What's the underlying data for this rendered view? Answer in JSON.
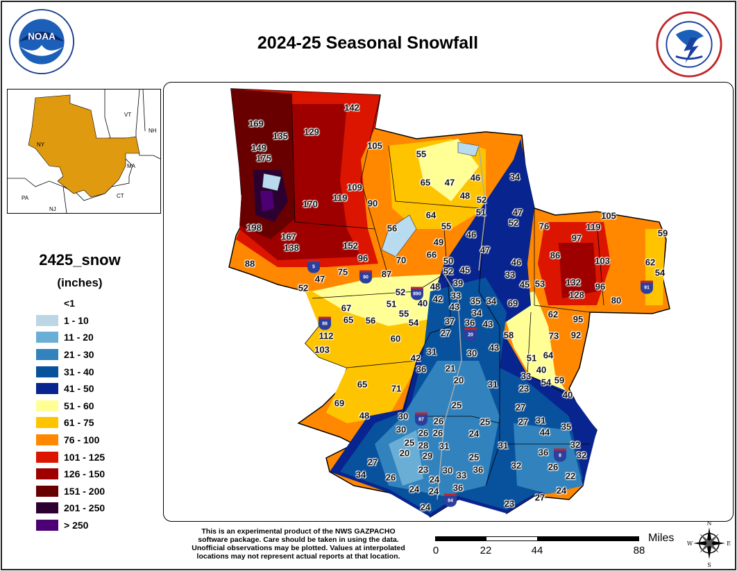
{
  "title": "2024-25 Seasonal Snowfall",
  "logos": {
    "left": "NOAA - National Oceanic and Atmospheric Administration, U.S. Department of Commerce",
    "right": "National Weather Service, U.S. Department of Commerce"
  },
  "inset": {
    "labels": [
      "NY",
      "VT",
      "NH",
      "MA",
      "CT",
      "PA",
      "NJ"
    ],
    "highlight_color": "#e09a10"
  },
  "legend": {
    "title": "2425_snow",
    "units": "(inches)",
    "items": [
      {
        "label": "<1",
        "color": "#ffffff"
      },
      {
        "label": "1 - 10",
        "color": "#bcd6e6"
      },
      {
        "label": "11 - 20",
        "color": "#6aaed6"
      },
      {
        "label": "21 - 30",
        "color": "#3182bd"
      },
      {
        "label": "31 - 40",
        "color": "#08519c"
      },
      {
        "label": "41 - 50",
        "color": "#08248f"
      },
      {
        "label": "51 - 60",
        "color": "#ffff96"
      },
      {
        "label": "61 - 75",
        "color": "#ffc400"
      },
      {
        "label": "76 - 100",
        "color": "#ff8800"
      },
      {
        "label": "101 - 125",
        "color": "#db1500"
      },
      {
        "label": "126 - 150",
        "color": "#9e0000"
      },
      {
        "label": "151 - 200",
        "color": "#690000"
      },
      {
        "label": "201 - 250",
        "color": "#2c0030"
      },
      {
        "label": "> 250",
        "color": "#4c0073"
      }
    ]
  },
  "map": {
    "labels": [
      "169",
      "142",
      "135",
      "129",
      "149",
      "175",
      "105",
      "55",
      "65",
      "47",
      "46",
      "34",
      "109",
      "119",
      "170",
      "90",
      "48",
      "52",
      "51",
      "64",
      "47",
      "52",
      "198",
      "167",
      "56",
      "55",
      "46",
      "138",
      "152",
      "49",
      "96",
      "66",
      "47",
      "88",
      "47",
      "75",
      "87",
      "70",
      "50",
      "52",
      "45",
      "46",
      "33",
      "45",
      "53",
      "52",
      "48",
      "39",
      "52",
      "40",
      "42",
      "33",
      "43",
      "35",
      "34",
      "69",
      "67",
      "51",
      "55",
      "34",
      "65",
      "56",
      "54",
      "37",
      "36",
      "43",
      "27",
      "112",
      "60",
      "58",
      "103",
      "31",
      "30",
      "43",
      "42",
      "36",
      "21",
      "51",
      "64",
      "40",
      "20",
      "33",
      "23",
      "54",
      "59",
      "65",
      "71",
      "31",
      "40",
      "69",
      "25",
      "27",
      "48",
      "30",
      "26",
      "25",
      "27",
      "31",
      "35",
      "30",
      "26",
      "26",
      "24",
      "44",
      "25",
      "28",
      "31",
      "31",
      "32",
      "20",
      "29",
      "36",
      "32",
      "25",
      "27",
      "23",
      "30",
      "36",
      "32",
      "26",
      "34",
      "26",
      "24",
      "33",
      "22",
      "36",
      "24",
      "24",
      "27",
      "24",
      "24",
      "23",
      "105",
      "76",
      "119",
      "59",
      "97",
      "86",
      "103",
      "62",
      "54",
      "132",
      "96",
      "128",
      "80",
      "62",
      "95",
      "73",
      "92"
    ],
    "highway_shields": [
      "5",
      "90",
      "890",
      "88",
      "20",
      "87",
      "8",
      "84",
      "91"
    ]
  },
  "disclaimer": "This is an experimental product of the NWS GAZPACHO software package. Care should be taken in using the data. Unofficial observations may be plotted. Values at interpolated locations may not represent actual reports at that location.",
  "scale": {
    "unit": "Miles",
    "ticks": [
      "0",
      "22",
      "44",
      "88"
    ]
  },
  "compass": {
    "n": "N",
    "s": "S",
    "e": "E",
    "w": "W"
  }
}
